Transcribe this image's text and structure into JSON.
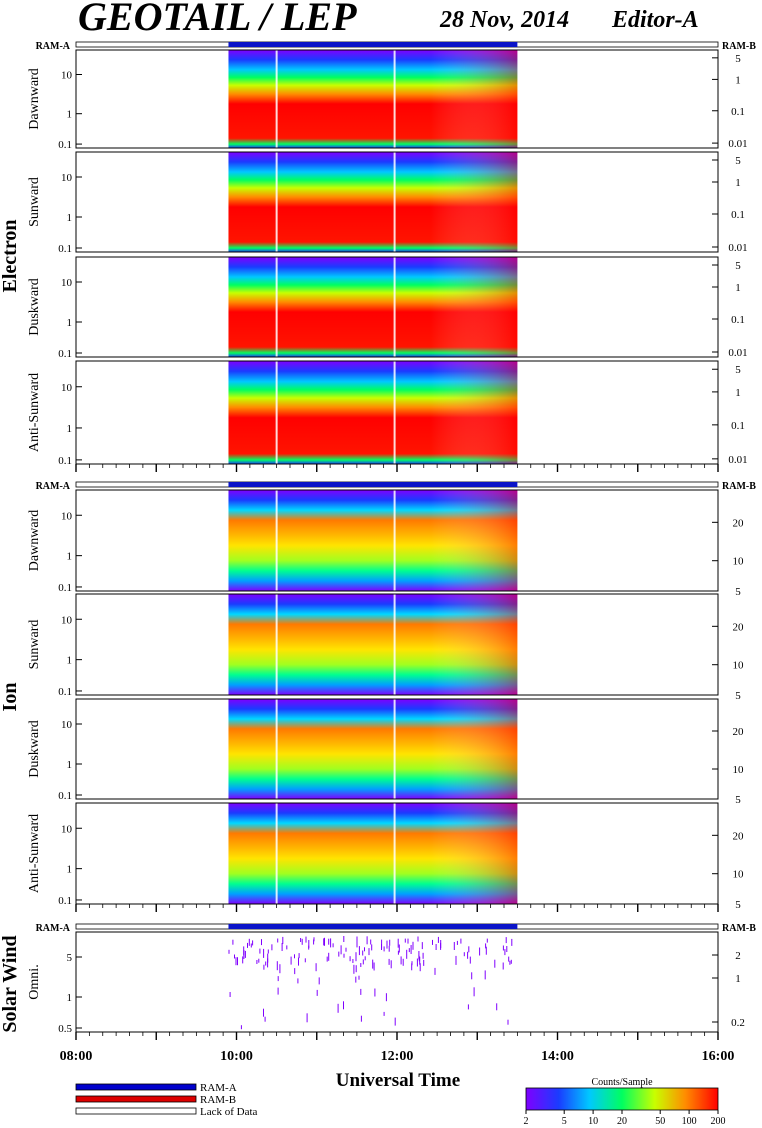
{
  "header": {
    "title": "GEOTAIL / LEP",
    "date": "28 Nov, 2014",
    "editor": "Editor-A"
  },
  "labels": {
    "ram_a": "RAM-A",
    "ram_b": "RAM-B",
    "electron": "Electron",
    "ion": "Ion",
    "solar_wind": "Solar Wind",
    "xaxis": "Universal Time",
    "colorbar_title": "Counts/Sample"
  },
  "legend": {
    "items": [
      {
        "label": "RAM-A",
        "color": "#0000cc"
      },
      {
        "label": "RAM-B",
        "color": "#dd0000"
      },
      {
        "label": "Lack of Data",
        "color": "#ffffff"
      }
    ]
  },
  "colors": {
    "ram_bar": "#0a14c8",
    "scale": [
      "#7f00ff",
      "#1a3cff",
      "#00c8ff",
      "#00ff60",
      "#c8ff00",
      "#ff8c00",
      "#ff0000"
    ]
  },
  "chart_data": {
    "type": "heatmap",
    "x_range_hours": [
      8,
      16
    ],
    "data_coverage_hours": [
      9.9,
      13.5
    ],
    "data_gaps_hours": [
      10.5,
      11.97
    ],
    "x_ticks": [
      "08:00",
      "10:00",
      "12:00",
      "14:00",
      "16:00"
    ],
    "colorbar": {
      "ticks": [
        "2",
        "5",
        "10",
        "20",
        "50",
        "100",
        "200"
      ],
      "values": [
        2,
        5,
        10,
        20,
        50,
        100,
        200
      ],
      "scale": "log"
    },
    "panels": [
      {
        "group": "Electron",
        "label": "Dawnward",
        "left_ticks": [
          "10",
          "1",
          "0.1"
        ],
        "right_ticks": [
          "5",
          "1",
          "0.1",
          "0.01"
        ]
      },
      {
        "group": "Electron",
        "label": "Sunward",
        "left_ticks": [
          "10",
          "1",
          "0.1"
        ],
        "right_ticks": [
          "5",
          "1",
          "0.1",
          "0.01"
        ]
      },
      {
        "group": "Electron",
        "label": "Duskward",
        "left_ticks": [
          "10",
          "1",
          "0.1"
        ],
        "right_ticks": [
          "5",
          "1",
          "0.1",
          "0.01"
        ]
      },
      {
        "group": "Electron",
        "label": "Anti-Sunward",
        "left_ticks": [
          "10",
          "1",
          "0.1"
        ],
        "right_ticks": [
          "5",
          "1",
          "0.1",
          "0.01"
        ]
      },
      {
        "group": "Ion",
        "label": "Dawnward",
        "left_ticks": [
          "10",
          "1",
          "0.1"
        ],
        "right_ticks": [
          "20",
          "10",
          "5"
        ]
      },
      {
        "group": "Ion",
        "label": "Sunward",
        "left_ticks": [
          "10",
          "1",
          "0.1"
        ],
        "right_ticks": [
          "20",
          "10",
          "5"
        ]
      },
      {
        "group": "Ion",
        "label": "Duskward",
        "left_ticks": [
          "10",
          "1",
          "0.1"
        ],
        "right_ticks": [
          "20",
          "10",
          "5"
        ]
      },
      {
        "group": "Ion",
        "label": "Anti-Sunward",
        "left_ticks": [
          "10",
          "1",
          "0.1"
        ],
        "right_ticks": [
          "20",
          "10",
          "5"
        ]
      },
      {
        "group": "Solar Wind",
        "label": "Omni.",
        "left_ticks": [
          "5",
          "1",
          "0.5"
        ],
        "right_ticks": [
          "2",
          "1",
          "0.2"
        ]
      }
    ]
  }
}
